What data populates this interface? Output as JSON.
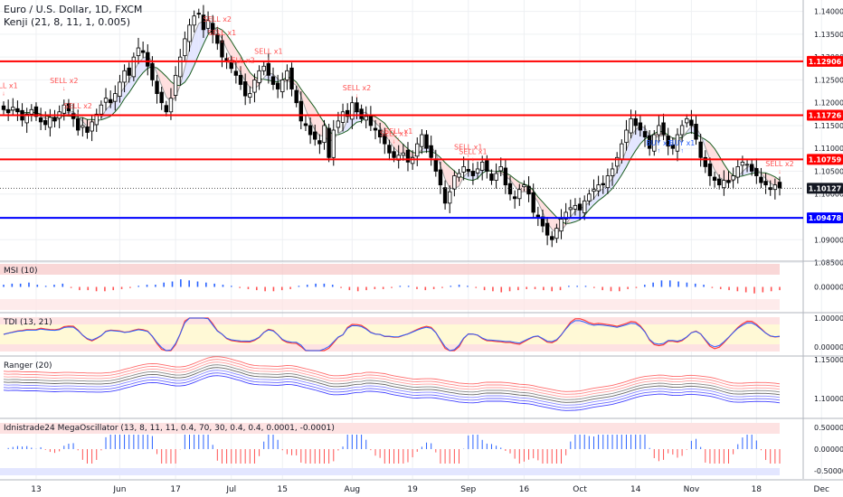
{
  "header": {
    "symbol": "Euro / U.S. Dollar, 1D, FXCM",
    "indicator": "Kenji (21, 8, 11, 1, 0.005)"
  },
  "colors": {
    "up": "#ffffff",
    "down": "#000000",
    "red_line": "#ff0000",
    "blue_line": "#0000ff",
    "grid": "#eef0f3",
    "signal": "#ff5252",
    "buy_signal": "#2962ff",
    "band_fill_up": "#e0e3ff",
    "band_fill_down": "#ffdcdc"
  },
  "chart_data": [
    {
      "type": "candlestick",
      "title": "Euro / U.S. Dollar, 1D, FXCM",
      "ylim": [
        1.0855,
        1.1425
      ],
      "y_ticks": [
        "1.14000",
        "1.13500",
        "1.13000",
        "1.12500",
        "1.12000",
        "1.11500",
        "1.11000",
        "1.10500",
        "1.10000",
        "1.09500",
        "1.09000",
        "1.08500"
      ],
      "x_ticks": [
        "13",
        "Jun",
        "17",
        "Jul",
        "15",
        "Aug",
        "19",
        "Sep",
        "16",
        "Oct",
        "14",
        "Nov",
        "18",
        "Dec"
      ],
      "levels": [
        {
          "value": 1.12906,
          "label": "1.12906",
          "color": "red"
        },
        {
          "value": 1.11726,
          "label": "1.11726",
          "color": "red"
        },
        {
          "value": 1.10759,
          "label": "1.10759",
          "color": "red"
        },
        {
          "value": 1.09478,
          "label": "1.09478",
          "color": "blue"
        }
      ],
      "last_price": {
        "value": 1.10127,
        "label": "1.10127"
      },
      "close_series": [
        1.1185,
        1.1178,
        1.119,
        1.118,
        1.1162,
        1.1175,
        1.1185,
        1.117,
        1.1158,
        1.1152,
        1.1168,
        1.116,
        1.118,
        1.1195,
        1.1182,
        1.1165,
        1.114,
        1.115,
        1.1135,
        1.1158,
        1.1175,
        1.1195,
        1.121,
        1.12,
        1.122,
        1.1245,
        1.127,
        1.126,
        1.13,
        1.132,
        1.131,
        1.128,
        1.125,
        1.122,
        1.12,
        1.118,
        1.121,
        1.126,
        1.13,
        1.134,
        1.137,
        1.139,
        1.1395,
        1.136,
        1.138,
        1.135,
        1.133,
        1.13,
        1.129,
        1.1275,
        1.126,
        1.124,
        1.1215,
        1.122,
        1.125,
        1.127,
        1.128,
        1.126,
        1.124,
        1.123,
        1.125,
        1.127,
        1.123,
        1.12,
        1.116,
        1.115,
        1.113,
        1.112,
        1.111,
        1.115,
        1.108,
        1.114,
        1.116,
        1.118,
        1.117,
        1.12,
        1.118,
        1.1165,
        1.117,
        1.115,
        1.114,
        1.1125,
        1.111,
        1.109,
        1.108,
        1.1085,
        1.109,
        1.107,
        1.108,
        1.111,
        1.113,
        1.11,
        1.108,
        1.105,
        1.102,
        1.098,
        1.1005,
        1.104,
        1.1045,
        1.106,
        1.105,
        1.104,
        1.1055,
        1.107,
        1.105,
        1.103,
        1.1045,
        1.106,
        1.102,
        1.1,
        1.099,
        1.101,
        1.102,
        1.1,
        1.096,
        1.095,
        1.093,
        1.091,
        1.09,
        1.0925,
        1.0945,
        1.096,
        1.097,
        1.0975,
        1.0965,
        1.0985,
        1.1,
        1.101,
        1.102,
        1.102,
        1.104,
        1.1055,
        1.108,
        1.111,
        1.114,
        1.1165,
        1.115,
        1.114,
        1.1125,
        1.11,
        1.113,
        1.115,
        1.113,
        1.1105,
        1.11,
        1.113,
        1.115,
        1.1165,
        1.115,
        1.112,
        1.108,
        1.106,
        1.104,
        1.103,
        1.102,
        1.103,
        1.1025,
        1.104,
        1.106,
        1.107,
        1.1065,
        1.105,
        1.104,
        1.1025,
        1.102,
        1.101,
        1.102,
        1.1013
      ],
      "signals": [
        {
          "label": "SELL x1",
          "index": 0
        },
        {
          "label": "SELL x2",
          "index": 13
        },
        {
          "label": "SELL x2",
          "index": 16
        },
        {
          "label": "SELL x1",
          "index": 47
        },
        {
          "label": "SELL x2",
          "index": 51
        },
        {
          "label": "SELL x2",
          "index": 46
        },
        {
          "label": "SELL x1",
          "index": 57
        },
        {
          "label": "SELL x2",
          "index": 76
        },
        {
          "label": "SELL x1",
          "index": 85
        },
        {
          "label": "SELL x1",
          "index": 84
        },
        {
          "label": "SELL x1",
          "index": 101
        },
        {
          "label": "SELL x1",
          "index": 100
        },
        {
          "label": "BUY x1",
          "index": 141
        },
        {
          "label": "BUY x1",
          "index": 146
        },
        {
          "label": "SELL x2",
          "index": 167
        },
        {
          "label": "SELL x1",
          "index": 176
        }
      ]
    },
    {
      "type": "bar",
      "title": "MSI (10)",
      "y_ticks": [
        "0.00000"
      ],
      "values": [
        0.2,
        0.3,
        0.3,
        0.4,
        0.2,
        0.1,
        0.2,
        0.3,
        -0.1,
        -0.3,
        -0.3,
        -0.4,
        -0.4,
        -0.3,
        -0.2,
        -0.1,
        0.1,
        0.2,
        0.2,
        0.4,
        0.5,
        0.7,
        0.6,
        0.5,
        0.4,
        0.3,
        0.2,
        0.1,
        -0.1,
        -0.2,
        -0.3,
        -0.4,
        -0.4,
        -0.3,
        -0.2,
        0.1,
        0.2,
        0.3,
        0.3,
        0.2,
        -0.1,
        -0.3,
        -0.4,
        -0.3,
        -0.2,
        -0.2,
        -0.1,
        0.1,
        0.1,
        -0.2,
        -0.3,
        -0.2,
        -0.1,
        0.1,
        0.2,
        0.1,
        -0.1,
        -0.3,
        -0.4,
        -0.5,
        -0.4,
        -0.3,
        -0.2,
        -0.2,
        -0.3,
        -0.4,
        -0.3,
        0.1,
        0.1,
        0.1,
        -0.1,
        -0.3,
        -0.4,
        -0.4,
        -0.2,
        -0.1,
        0.2,
        0.4,
        0.6,
        0.6,
        0.5,
        0.4,
        0.3,
        0.2,
        -0.1,
        -0.2,
        -0.3,
        -0.4,
        -0.5,
        -0.6,
        -0.5,
        -0.4,
        -0.3
      ],
      "bands": {
        "upper_fill": "#f7c6c6",
        "lower_fill": "#fde2e2"
      }
    },
    {
      "type": "line",
      "title": "TDI (13, 21)",
      "y_ticks": [
        "1.00000",
        "0.00000"
      ]
    },
    {
      "type": "line",
      "title": "Ranger (20)",
      "y_ticks": [
        "1.15000",
        "1.10000"
      ]
    },
    {
      "type": "bar",
      "title": "Idnistrade24 MegaOscillator (13, 8, 11, 11, 0.4, 70, 30, 0.4, 0.4, 0.0001, -0.0001)",
      "y_ticks": [
        "0.50000",
        "0.00000",
        "-0.50000"
      ]
    }
  ]
}
